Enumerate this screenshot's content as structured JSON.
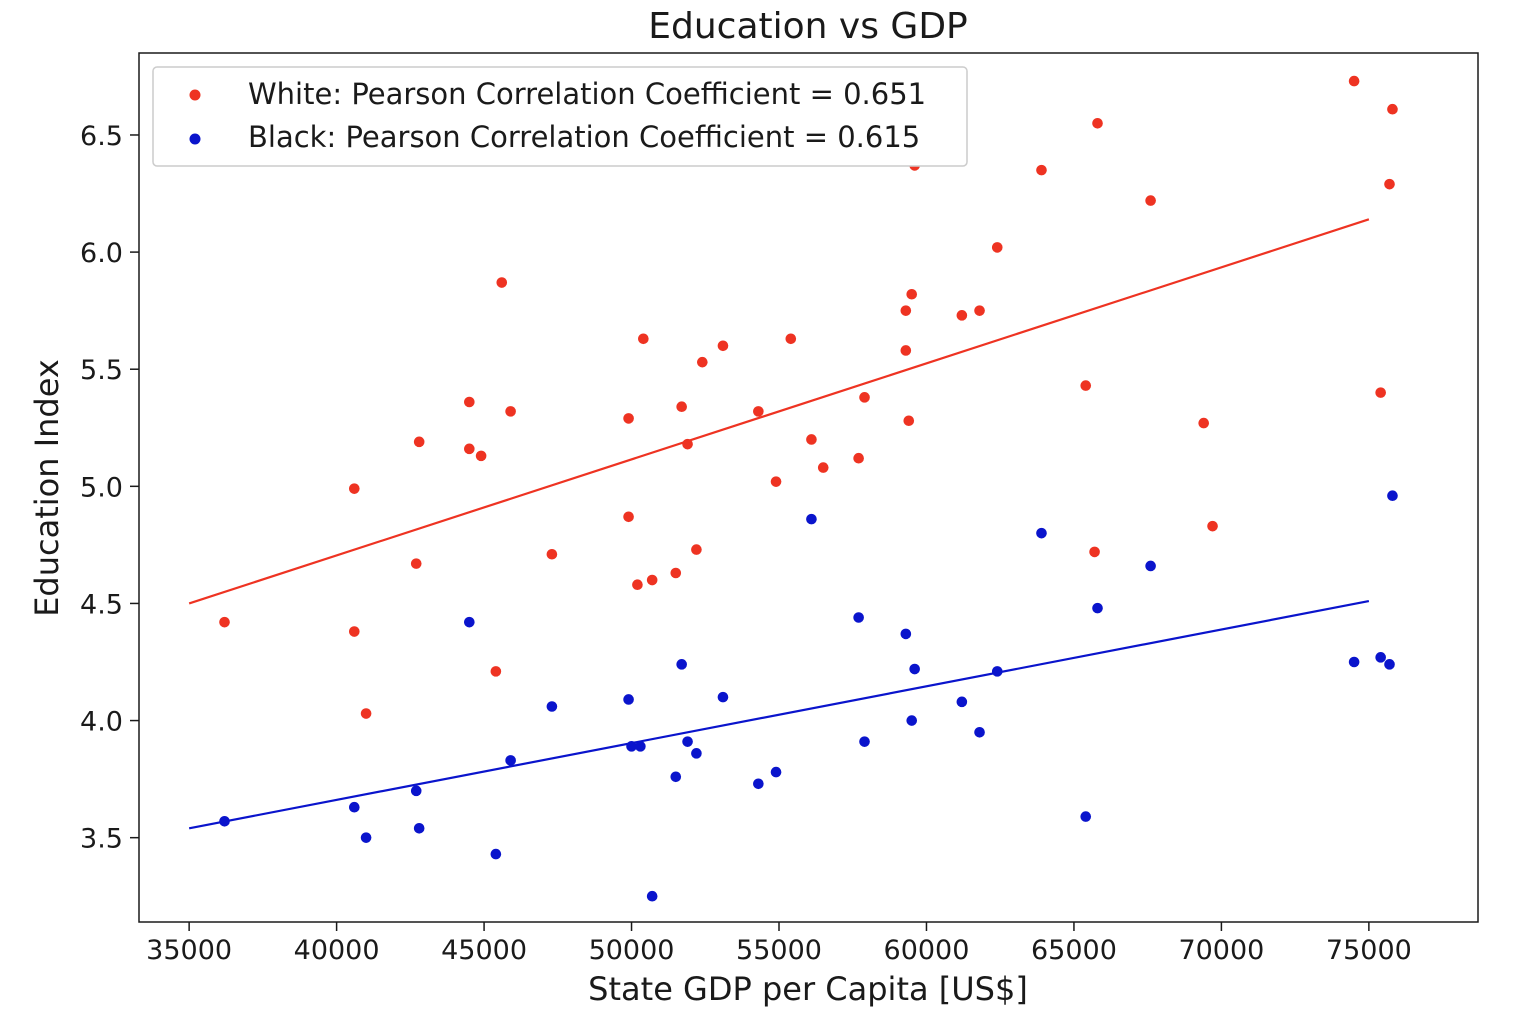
{
  "chart_data": {
    "type": "scatter",
    "title": "Education vs GDP",
    "xlabel": "State GDP per Capita [US$]",
    "ylabel": "Education Index",
    "xlim": [
      33300,
      78700
    ],
    "ylim": [
      3.14,
      6.85
    ],
    "xticks": [
      35000,
      40000,
      45000,
      50000,
      55000,
      60000,
      65000,
      70000,
      75000
    ],
    "xtick_labels": [
      "35000",
      "40000",
      "45000",
      "50000",
      "55000",
      "60000",
      "65000",
      "70000",
      "75000"
    ],
    "yticks": [
      3.5,
      4.0,
      4.5,
      5.0,
      5.5,
      6.0,
      6.5
    ],
    "ytick_labels": [
      "3.5",
      "4.0",
      "4.5",
      "5.0",
      "5.5",
      "6.0",
      "6.5"
    ],
    "grid": false,
    "legend_position": "top-left",
    "series": [
      {
        "name": "White: Pearson Correlation Coefficient = 0.651",
        "color": "#ee3322",
        "points": [
          [
            36200,
            4.42
          ],
          [
            40600,
            4.99
          ],
          [
            40600,
            4.38
          ],
          [
            41000,
            4.03
          ],
          [
            42700,
            4.67
          ],
          [
            42800,
            5.19
          ],
          [
            44500,
            5.36
          ],
          [
            44500,
            5.16
          ],
          [
            44900,
            5.13
          ],
          [
            45400,
            4.21
          ],
          [
            45600,
            5.87
          ],
          [
            45900,
            5.32
          ],
          [
            47300,
            4.71
          ],
          [
            49900,
            5.29
          ],
          [
            49900,
            4.87
          ],
          [
            50200,
            4.58
          ],
          [
            50400,
            5.63
          ],
          [
            50700,
            4.6
          ],
          [
            51500,
            4.63
          ],
          [
            51700,
            5.34
          ],
          [
            51900,
            5.18
          ],
          [
            52200,
            4.73
          ],
          [
            52400,
            5.53
          ],
          [
            53100,
            5.6
          ],
          [
            54300,
            5.32
          ],
          [
            54900,
            5.02
          ],
          [
            55400,
            5.63
          ],
          [
            56100,
            5.2
          ],
          [
            56500,
            5.08
          ],
          [
            57700,
            5.12
          ],
          [
            57900,
            5.38
          ],
          [
            59300,
            5.75
          ],
          [
            59300,
            5.58
          ],
          [
            59400,
            5.28
          ],
          [
            59500,
            5.82
          ],
          [
            59600,
            6.37
          ],
          [
            61200,
            5.73
          ],
          [
            61800,
            5.75
          ],
          [
            62400,
            6.02
          ],
          [
            63900,
            6.35
          ],
          [
            65400,
            5.43
          ],
          [
            65700,
            4.72
          ],
          [
            65800,
            6.55
          ],
          [
            67600,
            6.22
          ],
          [
            69400,
            5.27
          ],
          [
            69700,
            4.83
          ],
          [
            74500,
            6.73
          ],
          [
            75400,
            5.4
          ],
          [
            75700,
            6.29
          ],
          [
            75800,
            6.61
          ]
        ],
        "trend": [
          [
            35000,
            4.5
          ],
          [
            75000,
            6.14
          ]
        ]
      },
      {
        "name": "Black: Pearson Correlation Coefficient = 0.615",
        "color": "#0a14cc",
        "points": [
          [
            36200,
            3.57
          ],
          [
            40600,
            3.63
          ],
          [
            41000,
            3.5
          ],
          [
            42700,
            3.7
          ],
          [
            42800,
            3.54
          ],
          [
            44500,
            4.42
          ],
          [
            45400,
            3.43
          ],
          [
            45900,
            3.83
          ],
          [
            47300,
            4.06
          ],
          [
            49900,
            4.09
          ],
          [
            50000,
            3.89
          ],
          [
            50300,
            3.89
          ],
          [
            50700,
            3.25
          ],
          [
            51500,
            3.76
          ],
          [
            51700,
            4.24
          ],
          [
            51900,
            3.91
          ],
          [
            52200,
            3.86
          ],
          [
            53100,
            4.1
          ],
          [
            54300,
            3.73
          ],
          [
            54900,
            3.78
          ],
          [
            56100,
            4.86
          ],
          [
            57700,
            4.44
          ],
          [
            57900,
            3.91
          ],
          [
            59300,
            4.37
          ],
          [
            59500,
            4.0
          ],
          [
            59600,
            4.22
          ],
          [
            61200,
            4.08
          ],
          [
            61800,
            3.95
          ],
          [
            62400,
            4.21
          ],
          [
            63900,
            4.8
          ],
          [
            65400,
            3.59
          ],
          [
            65800,
            4.48
          ],
          [
            67600,
            4.66
          ],
          [
            74500,
            4.25
          ],
          [
            75400,
            4.27
          ],
          [
            75700,
            4.24
          ],
          [
            75800,
            4.96
          ]
        ],
        "trend": [
          [
            35000,
            3.54
          ],
          [
            75000,
            4.51
          ]
        ]
      }
    ]
  }
}
